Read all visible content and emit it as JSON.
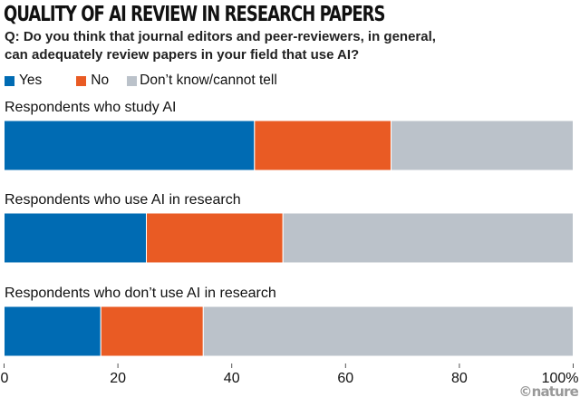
{
  "chart_data": {
    "type": "bar",
    "orientation": "horizontal",
    "stacked": true,
    "title": "QUALITY OF AI REVIEW IN RESEARCH PAPERS",
    "subtitle": "Q: Do you think that journal editors and peer-reviewers, in general, can adequately review papers in your field that use AI?",
    "subtitle_lines": [
      "Q: Do you think that journal editors and peer-reviewers, in general,",
      "can adequately review papers in your field that use AI?"
    ],
    "categories": [
      "Respondents who study AI",
      "Respondents who use AI in research",
      "Respondents who don’t use AI in research"
    ],
    "series": [
      {
        "name": "Yes",
        "color": "#006bb3",
        "values": [
          44,
          25,
          17
        ]
      },
      {
        "name": "No",
        "color": "#e95b24",
        "values": [
          24,
          24,
          18
        ]
      },
      {
        "name": "Don’t know/cannot tell",
        "color": "#bbc2ca",
        "values": [
          32,
          51,
          65
        ]
      }
    ],
    "xlim": [
      0,
      100
    ],
    "xticks": [
      0,
      20,
      40,
      60,
      80,
      100
    ],
    "xtick_labels": [
      "0",
      "20",
      "40",
      "60",
      "80",
      "100%"
    ],
    "xlabel": "",
    "ylabel": "",
    "legend": "top-left",
    "grid": false
  },
  "credit": "©nature"
}
